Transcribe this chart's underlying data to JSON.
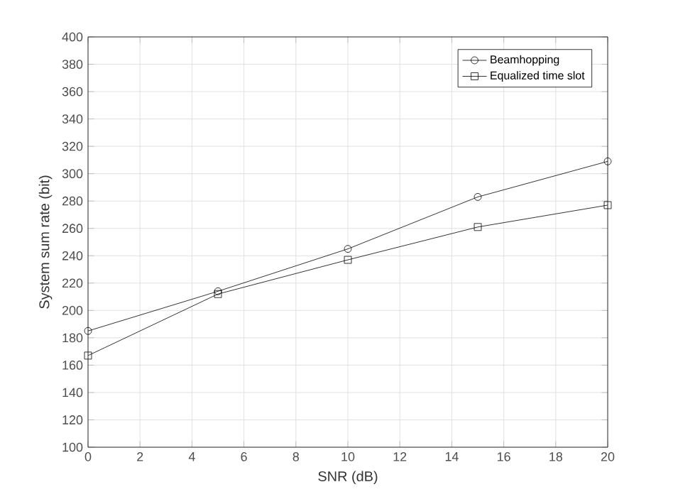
{
  "chart_data": {
    "type": "line",
    "xlabel": "SNR (dB)",
    "ylabel": "System sum rate (bit)",
    "x": [
      0,
      5,
      10,
      15,
      20
    ],
    "series": [
      {
        "name": "Beamhopping",
        "color": "#000000",
        "marker": "circle",
        "values": [
          185,
          214,
          245,
          283,
          309
        ]
      },
      {
        "name": "Equalized time slot",
        "color": "#000000",
        "marker": "square",
        "values": [
          167,
          212,
          237,
          261,
          277
        ]
      }
    ],
    "xlim": [
      0,
      20
    ],
    "xticks": [
      0,
      2,
      4,
      6,
      8,
      10,
      12,
      14,
      16,
      18,
      20
    ],
    "ylim": [
      100,
      400
    ],
    "yticks": [
      100,
      120,
      140,
      160,
      180,
      200,
      220,
      240,
      260,
      280,
      300,
      320,
      340,
      360,
      380,
      400
    ],
    "grid": true,
    "legend": "top right",
    "line_style": "solid"
  }
}
